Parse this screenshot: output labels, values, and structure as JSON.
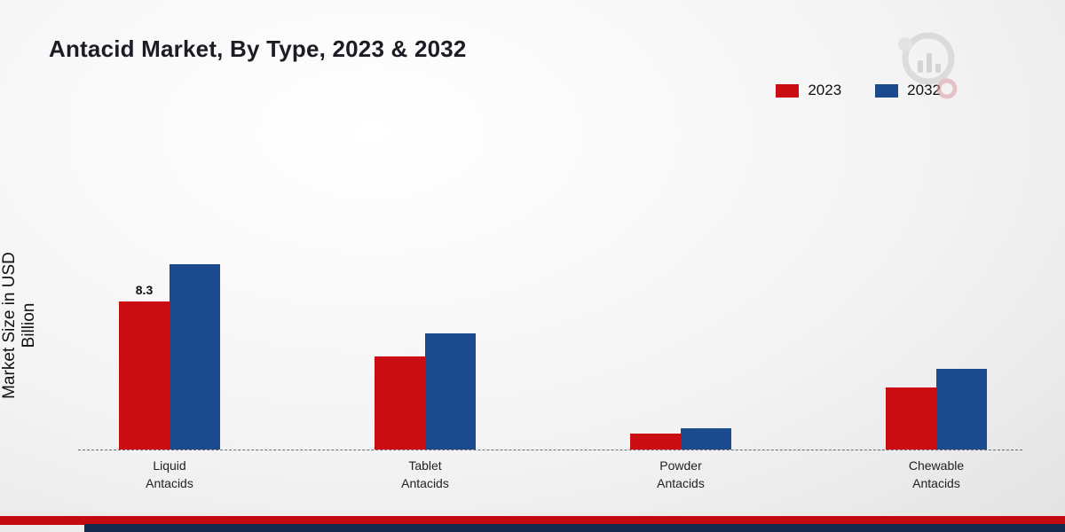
{
  "title": "Antacid Market, By Type, 2023 & 2032",
  "ylabel": "Market Size in USD Billion",
  "legend": [
    {
      "label": "2023",
      "color": "#c90d12"
    },
    {
      "label": "2032",
      "color": "#1b4a8f"
    }
  ],
  "brand": {
    "footer_red": "#c20a10",
    "footer_navy": "#16294e",
    "logo_name": "market-research-logo"
  },
  "chart_data": {
    "type": "bar",
    "title": "Antacid Market, By Type, 2023 & 2032",
    "xlabel": "",
    "ylabel": "Market Size in USD Billion",
    "categories": [
      "Liquid Antacids",
      "Tablet Antacids",
      "Powder Antacids",
      "Chewable Antacids"
    ],
    "series": [
      {
        "name": "2023",
        "color": "#c90d12",
        "values": [
          8.3,
          5.2,
          0.9,
          3.5
        ]
      },
      {
        "name": "2032",
        "color": "#1b4a8f",
        "values": [
          10.4,
          6.5,
          1.2,
          4.5
        ]
      }
    ],
    "data_labels": [
      [
        "8.3",
        "",
        "",
        ""
      ],
      [
        "",
        "",
        "",
        ""
      ]
    ],
    "ylim": [
      0,
      12
    ],
    "grid": false,
    "axis_line": "dashed-baseline-only",
    "legend_position": "top-right"
  }
}
